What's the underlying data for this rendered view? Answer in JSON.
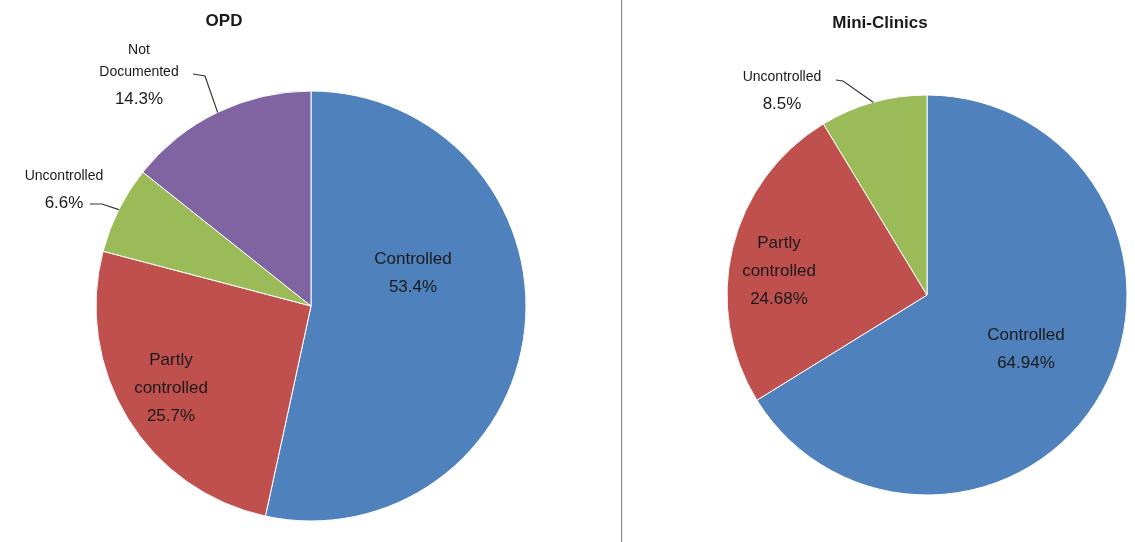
{
  "chart_data": [
    {
      "type": "pie",
      "title": "OPD",
      "categories": [
        "Controlled",
        "Partly controlled",
        "Uncontrolled",
        "Not Documented"
      ],
      "values": [
        53.4,
        25.7,
        6.6,
        14.3
      ],
      "value_labels": [
        "53.4%",
        "25.7%",
        "6.6%",
        "14.3%"
      ],
      "colors": [
        "#4f81bd",
        "#c0504d",
        "#9bbb59",
        "#8064a2"
      ]
    },
    {
      "type": "pie",
      "title": "Mini-Clinics",
      "categories": [
        "Controlled",
        "Partly controlled",
        "Uncontrolled"
      ],
      "values": [
        64.94,
        24.68,
        8.5
      ],
      "value_labels": [
        "64.94%",
        "24.68%",
        "8.5%"
      ],
      "colors": [
        "#4f81bd",
        "#c0504d",
        "#9bbb59"
      ]
    }
  ]
}
